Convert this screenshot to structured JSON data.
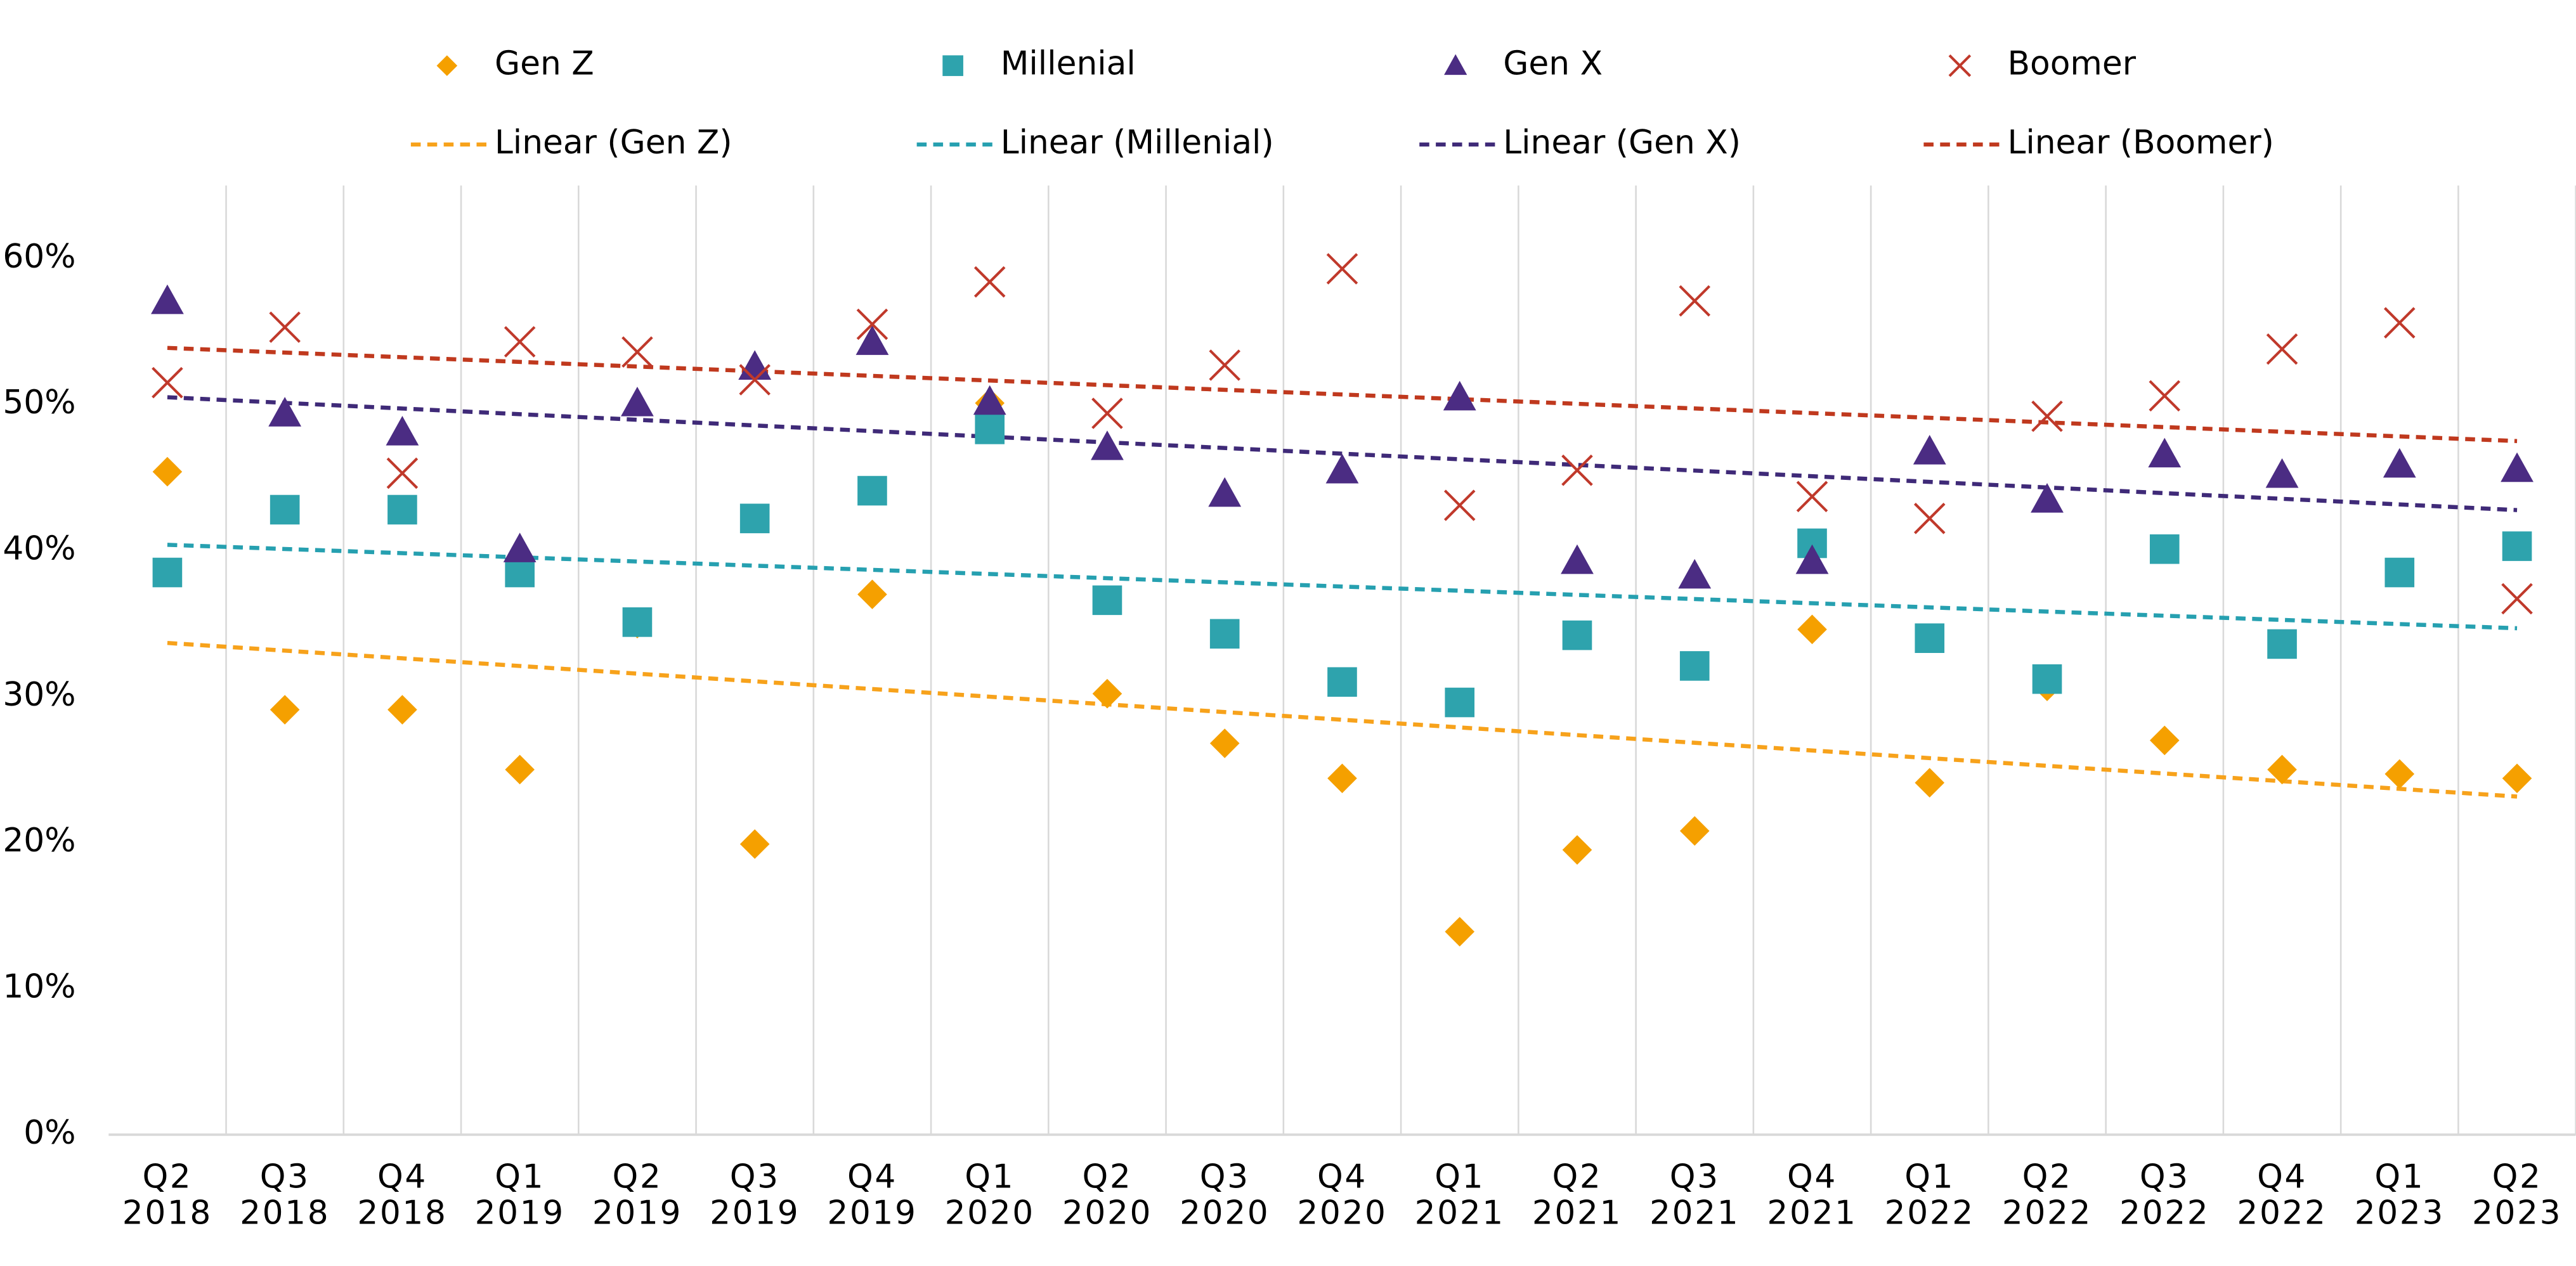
{
  "chart_data": {
    "type": "scatter",
    "categories": [
      [
        "Q2",
        "2018"
      ],
      [
        "Q3",
        "2018"
      ],
      [
        "Q4",
        "2018"
      ],
      [
        "Q1",
        "2019"
      ],
      [
        "Q2",
        "2019"
      ],
      [
        "Q3",
        "2019"
      ],
      [
        "Q4",
        "2019"
      ],
      [
        "Q1",
        "2020"
      ],
      [
        "Q2",
        "2020"
      ],
      [
        "Q3",
        "2020"
      ],
      [
        "Q4",
        "2020"
      ],
      [
        "Q1",
        "2021"
      ],
      [
        "Q2",
        "2021"
      ],
      [
        "Q3",
        "2021"
      ],
      [
        "Q4",
        "2021"
      ],
      [
        "Q1",
        "2022"
      ],
      [
        "Q2",
        "2022"
      ],
      [
        "Q3",
        "2022"
      ],
      [
        "Q4",
        "2022"
      ],
      [
        "Q1",
        "2023"
      ],
      [
        "Q2",
        "2023"
      ]
    ],
    "series": [
      {
        "name": "Gen Z",
        "color": "#f5a000",
        "marker": "diamond",
        "trendline": {
          "name": "Linear (Gen Z)",
          "color": "#f7a21b"
        },
        "values": [
          45.4,
          29.1,
          29.1,
          25.0,
          35.0,
          19.9,
          37.0,
          50.1,
          30.2,
          26.8,
          24.4,
          13.9,
          19.5,
          20.8,
          34.6,
          24.1,
          30.7,
          27.0,
          25.0,
          24.7,
          24.4
        ]
      },
      {
        "name": "Millenial",
        "color": "#2ea3ad",
        "marker": "square",
        "trendline": {
          "name": "Linear (Millenial)",
          "color": "#26a0b0"
        },
        "values": [
          38.5,
          42.8,
          42.8,
          38.5,
          35.1,
          42.2,
          44.1,
          48.3,
          36.6,
          34.3,
          31.0,
          29.6,
          34.2,
          32.1,
          40.5,
          34.0,
          31.2,
          40.1,
          33.6,
          38.5,
          40.3
        ]
      },
      {
        "name": "Gen X",
        "color": "#4b2c83",
        "marker": "triangle",
        "trendline": {
          "name": "Linear (Gen X)",
          "color": "#3f2a78"
        },
        "values": [
          57.1,
          49.4,
          48.1,
          40.1,
          50.1,
          52.6,
          54.3,
          50.2,
          47.1,
          43.9,
          45.5,
          50.5,
          39.3,
          38.3,
          39.3,
          46.8,
          43.5,
          46.6,
          45.2,
          45.9,
          45.6
        ]
      },
      {
        "name": "Boomer",
        "color": "#c0392b",
        "marker": "x",
        "trendline": {
          "name": "Linear (Boomer)",
          "color": "#c0391e"
        },
        "values": [
          51.5,
          55.3,
          45.3,
          54.3,
          53.6,
          51.7,
          55.5,
          58.4,
          49.4,
          52.7,
          59.3,
          43.1,
          45.5,
          57.1,
          43.7,
          42.2,
          49.2,
          50.6,
          53.8,
          55.6,
          36.7
        ]
      }
    ],
    "ylim": [
      0,
      65
    ],
    "yticks": [
      {
        "value": 0,
        "label": "0%"
      },
      {
        "value": 10,
        "label": "10%"
      },
      {
        "value": 20,
        "label": "20%"
      },
      {
        "value": 30,
        "label": "30%"
      },
      {
        "value": 40,
        "label": "40%"
      },
      {
        "value": 50,
        "label": "50%"
      },
      {
        "value": 60,
        "label": "60%"
      }
    ],
    "grid": "x",
    "legend": "top"
  }
}
